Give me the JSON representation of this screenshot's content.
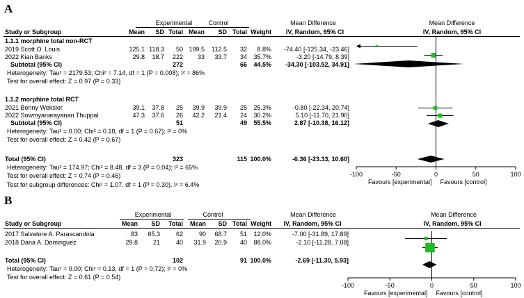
{
  "panelA": {
    "letter": "A",
    "group_headers": {
      "experimental": "Experimental",
      "control": "Control",
      "md_left": "Mean Difference",
      "md_right": "Mean Difference"
    },
    "col_headers": {
      "study": "Study or Subgroup",
      "mean_e": "Mean",
      "sd_e": "SD",
      "total_e": "Total",
      "mean_c": "Mean",
      "sd_c": "SD",
      "total_c": "Total",
      "weight": "Weight",
      "ci_left": "IV, Random, 95% CI",
      "ci_right": "IV, Random, 95% CI"
    },
    "sub1": {
      "title": "1.1.1 morphine total non-RCT",
      "rows": [
        {
          "study": "2019 Scott O. Louis",
          "mean_e": "125.1",
          "sd_e": "118.3",
          "total_e": "50",
          "mean_c": "199.5",
          "sd_c": "112.5",
          "total_c": "32",
          "weight": "8.8%",
          "ci": "-74.40 [-125.34, -23.46]"
        },
        {
          "study": "2022 Kian Banks",
          "mean_e": "29.8",
          "sd_e": "18.7",
          "total_e": "222",
          "mean_c": "33",
          "sd_c": "33.7",
          "total_c": "34",
          "weight": "35.7%",
          "ci": "-3.20 [-14.79, 8.39]"
        }
      ],
      "subtotal": {
        "label": "Subtotal (95% CI)",
        "total_e": "272",
        "total_c": "66",
        "weight": "44.5%",
        "ci": "-34.30 [-103.52, 34.91]"
      },
      "het": "Heterogeneity: Tau² = 2179.53; Chi² = 7.14, df = 1 (P = 0.008); I² = 86%",
      "test": "Test for overall effect: Z = 0.97 (P = 0.33)"
    },
    "sub2": {
      "title": "1.1.2 morphine total RCT",
      "rows": [
        {
          "study": "2021 Benny Weksler",
          "mean_e": "39.1",
          "sd_e": "37.8",
          "total_e": "25",
          "mean_c": "39.9",
          "sd_c": "39.9",
          "total_c": "25",
          "weight": "25.3%",
          "ci": "-0.80 [-22.34, 20.74]"
        },
        {
          "study": "2022 Sowmyanarayanan Thuppal",
          "mean_e": "47.3",
          "sd_e": "37.6",
          "total_e": "26",
          "mean_c": "42.2",
          "sd_c": "21.4",
          "total_c": "24",
          "weight": "30.2%",
          "ci": "5.10 [-11.70, 21.90]"
        }
      ],
      "subtotal": {
        "label": "Subtotal (95% CI)",
        "total_e": "51",
        "total_c": "49",
        "weight": "55.5%",
        "ci": "2.87 [-10.38, 16.12]"
      },
      "het": "Heterogeneity: Tau² = 0.00; Chi² = 0.18, df = 1 (P = 0.67); I² = 0%",
      "test": "Test for overall effect: Z = 0.42 (P = 0.67)"
    },
    "total": {
      "label": "Total (95% CI)",
      "total_e": "323",
      "total_c": "115",
      "weight": "100.0%",
      "ci": "-6.36 [-23.33, 10.60]"
    },
    "total_het": "Heterogeneity: Tau² = 174.97; Chi² = 8.48, df = 3 (P = 0.04); I² = 65%",
    "total_test": "Test for overall effect: Z = 0.74 (P = 0.46)",
    "subgroup_test": "Test for subgroup differences: Chi² = 1.07. df = 1 (P = 0.30). I² = 6.4%",
    "favours_left": "Favours [experimental]",
    "favours_right": "Favours [control]"
  },
  "panelB": {
    "letter": "B",
    "group_headers": {
      "experimental": "Experimental",
      "control": "Control",
      "md_left": "Mean Difference",
      "md_right": "Mean Difference"
    },
    "col_headers": {
      "study": "Study or Subgroup",
      "mean_e": "Mean",
      "sd_e": "SD",
      "total_e": "Total",
      "mean_c": "Mean",
      "sd_c": "SD",
      "total_c": "Total",
      "weight": "Weight",
      "ci_left": "IV, Random, 95% CI",
      "ci_right": "IV, Random, 95% CI"
    },
    "rows": [
      {
        "study": "2017 Salvatore A. Parascandola",
        "mean_e": "83",
        "sd_e": "65.3",
        "total_e": "62",
        "mean_c": "90",
        "sd_c": "68.7",
        "total_c": "51",
        "weight": "12.0%",
        "ci": "-7.00 [-31.89, 17.89]"
      },
      {
        "study": "2018 Dana A. Dominguez",
        "mean_e": "29.8",
        "sd_e": "21",
        "total_e": "40",
        "mean_c": "31.9",
        "sd_c": "20.9",
        "total_c": "40",
        "weight": "88.0%",
        "ci": "-2.10 [-11.28, 7.08]"
      }
    ],
    "total": {
      "label": "Total (95% CI)",
      "total_e": "102",
      "total_c": "91",
      "weight": "100.0%",
      "ci": "-2.69 [-11.30, 5.93]"
    },
    "total_het": "Heterogeneity: Tau² = 0.00; Chi² = 0.13, df = 1 (P = 0.72); I² = 0%",
    "total_test": "Test for overall effect: Z = 0.61 (P = 0.54)",
    "favours_left": "Favours [experimental]",
    "favours_right": "Favours [control]"
  },
  "chart_data": [
    {
      "type": "forest",
      "title": "A",
      "xlabel": "IV, Random, 95% CI",
      "xlim": [
        -100,
        100
      ],
      "ticks": [
        -100,
        -50,
        0,
        50,
        100
      ],
      "tick_labels": [
        "-100",
        "-50",
        "0",
        "50",
        "100"
      ],
      "studies": [
        {
          "name": "2019 Scott O. Louis",
          "md": -74.4,
          "lo": -125.34,
          "hi": -23.46,
          "weight": 8.8
        },
        {
          "name": "2022 Kian Banks",
          "md": -3.2,
          "lo": -14.79,
          "hi": 8.39,
          "weight": 35.7
        },
        {
          "name": "2021 Benny Weksler",
          "md": -0.8,
          "lo": -22.34,
          "hi": 20.74,
          "weight": 25.3
        },
        {
          "name": "2022 Sowmyanarayanan Thuppal",
          "md": 5.1,
          "lo": -11.7,
          "hi": 21.9,
          "weight": 30.2
        }
      ],
      "diamonds": [
        {
          "name": "Subtotal non-RCT",
          "md": -34.3,
          "lo": -103.52,
          "hi": 34.91
        },
        {
          "name": "Subtotal RCT",
          "md": 2.87,
          "lo": -10.38,
          "hi": 16.12
        },
        {
          "name": "Total",
          "md": -6.36,
          "lo": -23.33,
          "hi": 10.6
        }
      ],
      "legend": [
        "Favours [experimental]",
        "Favours [control]"
      ],
      "colors": {
        "square": "#22bb22",
        "diamond": "#000000"
      }
    },
    {
      "type": "forest",
      "title": "B",
      "xlabel": "IV, Random, 95% CI",
      "xlim": [
        -100,
        100
      ],
      "ticks": [
        -100,
        -50,
        0,
        50,
        100
      ],
      "tick_labels": [
        "-100",
        "-50",
        "0",
        "50",
        "100"
      ],
      "studies": [
        {
          "name": "2017 Salvatore A. Parascandola",
          "md": -7.0,
          "lo": -31.89,
          "hi": 17.89,
          "weight": 12.0
        },
        {
          "name": "2018 Dana A. Dominguez",
          "md": -2.1,
          "lo": -11.28,
          "hi": 7.08,
          "weight": 88.0
        }
      ],
      "diamonds": [
        {
          "name": "Total",
          "md": -2.69,
          "lo": -11.3,
          "hi": 5.93
        }
      ],
      "legend": [
        "Favours [experimental]",
        "Favours [control]"
      ],
      "colors": {
        "square": "#22bb22",
        "diamond": "#000000"
      }
    }
  ]
}
